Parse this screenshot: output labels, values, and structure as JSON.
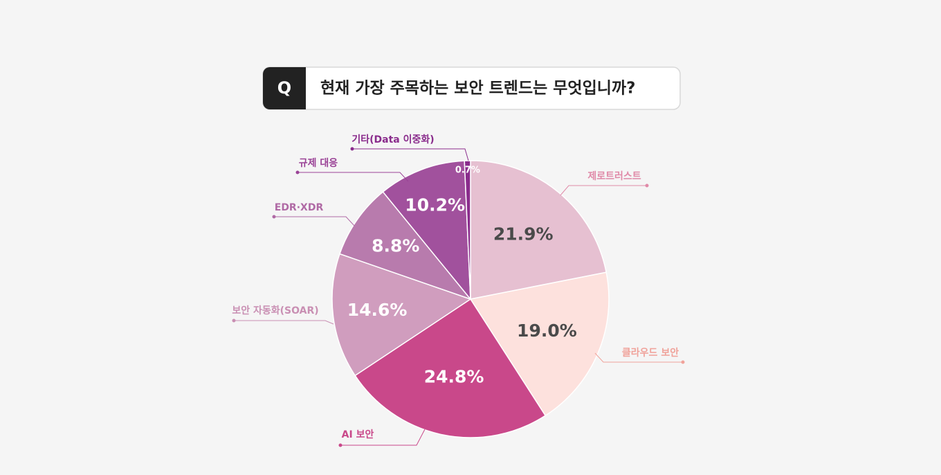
{
  "chart_data": {
    "type": "pie",
    "badge": "Q",
    "title": "현재 가장 주목하는 보안 트렌드는 무엇입니까?",
    "categories": [
      "제로트러스트",
      "클라우드 보안",
      "AI 보안",
      "보안 자동화(SOAR)",
      "EDR·XDR",
      "규제 대응",
      "기타(Data 이중화)"
    ],
    "values": [
      21.9,
      19.0,
      24.8,
      14.6,
      8.8,
      10.2,
      0.7
    ],
    "value_labels": [
      "21.9%",
      "19.0%",
      "24.8%",
      "14.6%",
      "8.8%",
      "10.2%",
      "0.7%"
    ],
    "colors": [
      "#e6c0d1",
      "#fde1dd",
      "#c9488a",
      "#d09dbe",
      "#b87bad",
      "#a1519d",
      "#8a2c8c"
    ]
  }
}
